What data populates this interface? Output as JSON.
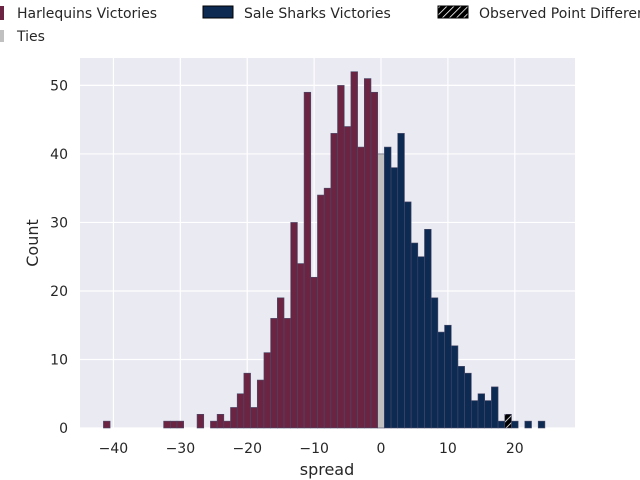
{
  "chart_data": {
    "type": "bar",
    "title": "",
    "xlabel": "spread",
    "ylabel": "Count",
    "xlim": [
      -45,
      29
    ],
    "ylim": [
      0,
      54
    ],
    "xticks": [
      -40,
      -30,
      -20,
      -10,
      0,
      10,
      20
    ],
    "yticks": [
      0,
      10,
      20,
      30,
      40,
      50
    ],
    "grid": true,
    "legend_position": "top",
    "legend": [
      {
        "label": "Harlequins Victories",
        "color": "#6b2442"
      },
      {
        "label": "Sale Sharks Victories",
        "color": "#0c2a52"
      },
      {
        "label": "Ties",
        "color": "#c0c0c0"
      },
      {
        "label": "Observed Point Difference",
        "color": "#000000"
      }
    ],
    "series": [
      {
        "color": "#6b2442",
        "x": [
          -41,
          -32,
          -31,
          -30,
          -27,
          -25,
          -24,
          -23,
          -22,
          -21,
          -20,
          -19,
          -18,
          -17,
          -16,
          -15,
          -14,
          -13,
          -12,
          -11,
          -10,
          -9,
          -8,
          -7,
          -6,
          -5,
          -4,
          -3,
          -2,
          -1
        ],
        "values": [
          1,
          1,
          1,
          1,
          2,
          1,
          2,
          1,
          3,
          5,
          8,
          3,
          7,
          11,
          16,
          19,
          16,
          30,
          24,
          49,
          22,
          34,
          35,
          43,
          50,
          44,
          52,
          41,
          51,
          49
        ]
      },
      {
        "color": "#c0c0c0",
        "x": [
          0
        ],
        "values": [
          40
        ]
      },
      {
        "color": "#0c2a52",
        "x": [
          1,
          2,
          3,
          4,
          5,
          6,
          7,
          8,
          9,
          10,
          11,
          12,
          13,
          14,
          15,
          16,
          17,
          18,
          20,
          22,
          24
        ],
        "values": [
          41,
          38,
          43,
          33,
          27,
          25,
          29,
          19,
          14,
          15,
          12,
          9,
          8,
          4,
          5,
          4,
          6,
          1,
          1,
          1,
          1
        ]
      },
      {
        "color": "#000000",
        "hatch": true,
        "x": [
          19
        ],
        "values": [
          2
        ]
      }
    ]
  }
}
